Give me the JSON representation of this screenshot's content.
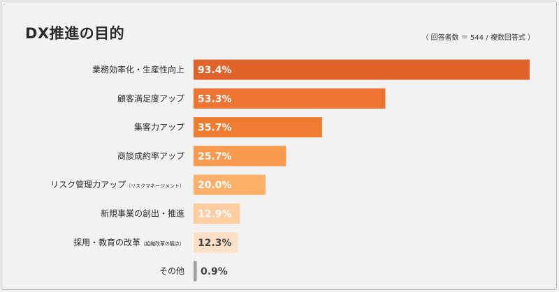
{
  "header": {
    "title": "DX推進の目的",
    "note": "（ 回答者数 ＝ 544 / 複数回答式 ）"
  },
  "chart_data": {
    "type": "bar",
    "orientation": "horizontal",
    "title": "DX推進の目的",
    "xlim": [
      0,
      100
    ],
    "categories": [
      {
        "label": "業務効率化・生産性向上",
        "sub": ""
      },
      {
        "label": "顧客満足度アップ",
        "sub": ""
      },
      {
        "label": "集客力アップ",
        "sub": ""
      },
      {
        "label": "商談成約率アップ",
        "sub": ""
      },
      {
        "label": "リスク管理力アップ",
        "sub": "（リスクマネージメント）"
      },
      {
        "label": "新規事業の創出・推進",
        "sub": ""
      },
      {
        "label": "採用・教育の改革",
        "sub": "（組織改革の観点）"
      },
      {
        "label": "その他",
        "sub": ""
      }
    ],
    "values": [
      93.4,
      53.3,
      35.7,
      25.7,
      20.0,
      12.9,
      12.3,
      0.9
    ],
    "value_labels": [
      "93.4%",
      "53.3%",
      "35.7%",
      "25.7%",
      "20.0%",
      "12.9%",
      "12.3%",
      "0.9%"
    ],
    "bar_colors": [
      "#e0642a",
      "#ee7431",
      "#f07c32",
      "#fb9a4e",
      "#fdb06a",
      "#ffcda0",
      "#ffe0c6",
      "#9e9e9e"
    ],
    "value_label_colors": [
      "#ffffff",
      "#ffffff",
      "#ffffff",
      "#ffffff",
      "#ffffff",
      "#ffffff",
      "#444444",
      "#444444"
    ]
  }
}
